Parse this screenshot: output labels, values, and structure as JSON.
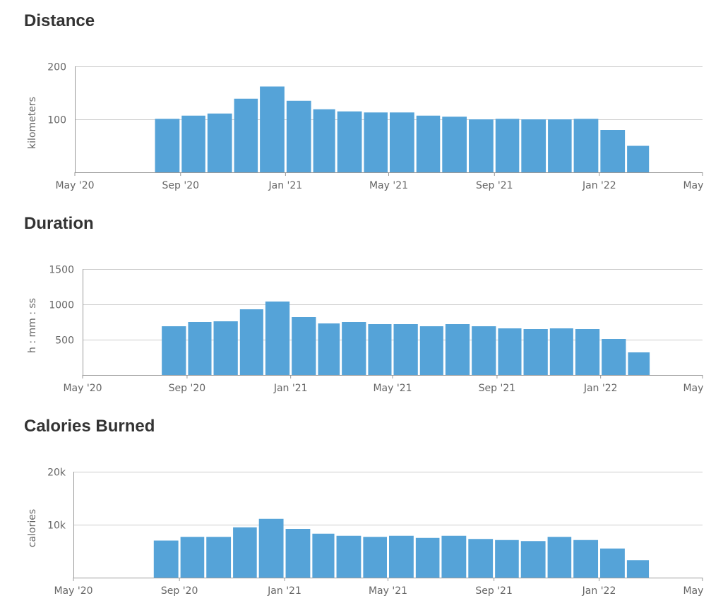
{
  "colors": {
    "bar": "#55a3d8",
    "grid": "#cccccc",
    "axis": "#999999",
    "text": "#666666",
    "title": "#333333"
  },
  "sections": [
    {
      "title": "Distance",
      "chart_data": {
        "type": "bar",
        "title": "Distance",
        "ylabel": "kilometers",
        "xlabel": "",
        "ylim": [
          0,
          200
        ],
        "yticks": [
          {
            "value": 100,
            "label": "100"
          },
          {
            "value": 200,
            "label": "200"
          }
        ],
        "xlim": [
          "2020-05-01",
          "2022-05-01"
        ],
        "xticks": [
          {
            "date": "2020-05-01",
            "label": "May '20"
          },
          {
            "date": "2020-09-01",
            "label": "Sep '20"
          },
          {
            "date": "2021-01-01",
            "label": "Jan '21"
          },
          {
            "date": "2021-05-01",
            "label": "May '21"
          },
          {
            "date": "2021-09-01",
            "label": "Sep '21"
          },
          {
            "date": "2022-01-01",
            "label": "Jan '22"
          },
          {
            "date": "2022-05-01",
            "label": "May '22"
          }
        ],
        "grid": true,
        "categories": [
          "2020-08",
          "2020-09",
          "2020-10",
          "2020-11",
          "2020-12",
          "2021-01",
          "2021-02",
          "2021-03",
          "2021-04",
          "2021-05",
          "2021-06",
          "2021-07",
          "2021-08",
          "2021-09",
          "2021-10",
          "2021-11",
          "2021-12",
          "2022-01",
          "2022-02"
        ],
        "values": [
          101,
          107,
          111,
          139,
          162,
          135,
          119,
          115,
          113,
          113,
          107,
          105,
          100,
          101,
          100,
          100,
          101,
          80,
          50
        ]
      }
    },
    {
      "title": "Duration",
      "chart_data": {
        "type": "bar",
        "title": "Duration",
        "ylabel": "h : mm : ss",
        "xlabel": "",
        "ylim": [
          0,
          1500
        ],
        "yticks": [
          {
            "value": 500,
            "label": "500"
          },
          {
            "value": 1000,
            "label": "1000"
          },
          {
            "value": 1500,
            "label": "1500"
          }
        ],
        "xlim": [
          "2020-05-01",
          "2022-05-01"
        ],
        "xticks": [
          {
            "date": "2020-05-01",
            "label": "May '20"
          },
          {
            "date": "2020-09-01",
            "label": "Sep '20"
          },
          {
            "date": "2021-01-01",
            "label": "Jan '21"
          },
          {
            "date": "2021-05-01",
            "label": "May '21"
          },
          {
            "date": "2021-09-01",
            "label": "Sep '21"
          },
          {
            "date": "2022-01-01",
            "label": "Jan '22"
          },
          {
            "date": "2022-05-01",
            "label": "May '22"
          }
        ],
        "grid": true,
        "categories": [
          "2020-08",
          "2020-09",
          "2020-10",
          "2020-11",
          "2020-12",
          "2021-01",
          "2021-02",
          "2021-03",
          "2021-04",
          "2021-05",
          "2021-06",
          "2021-07",
          "2021-08",
          "2021-09",
          "2021-10",
          "2021-11",
          "2021-12",
          "2022-01",
          "2022-02"
        ],
        "values": [
          690,
          750,
          760,
          930,
          1040,
          820,
          730,
          750,
          720,
          720,
          690,
          720,
          690,
          660,
          650,
          660,
          650,
          510,
          320
        ]
      }
    },
    {
      "title": "Calories Burned",
      "chart_data": {
        "type": "bar",
        "title": "Calories Burned",
        "ylabel": "calories",
        "xlabel": "",
        "ylim": [
          0,
          20000
        ],
        "yticks": [
          {
            "value": 10000,
            "label": "10k"
          },
          {
            "value": 20000,
            "label": "20k"
          }
        ],
        "xlim": [
          "2020-05-01",
          "2022-05-01"
        ],
        "xticks": [
          {
            "date": "2020-05-01",
            "label": "May '20"
          },
          {
            "date": "2020-09-01",
            "label": "Sep '20"
          },
          {
            "date": "2021-01-01",
            "label": "Jan '21"
          },
          {
            "date": "2021-05-01",
            "label": "May '21"
          },
          {
            "date": "2021-09-01",
            "label": "Sep '21"
          },
          {
            "date": "2022-01-01",
            "label": "Jan '22"
          },
          {
            "date": "2022-05-01",
            "label": "May '22"
          }
        ],
        "grid": true,
        "categories": [
          "2020-08",
          "2020-09",
          "2020-10",
          "2020-11",
          "2020-12",
          "2021-01",
          "2021-02",
          "2021-03",
          "2021-04",
          "2021-05",
          "2021-06",
          "2021-07",
          "2021-08",
          "2021-09",
          "2021-10",
          "2021-11",
          "2021-12",
          "2022-01",
          "2022-02"
        ],
        "values": [
          7000,
          7700,
          7700,
          9500,
          11100,
          9200,
          8300,
          7900,
          7700,
          7900,
          7500,
          7900,
          7300,
          7100,
          6900,
          7700,
          7100,
          5500,
          3300
        ]
      }
    }
  ]
}
